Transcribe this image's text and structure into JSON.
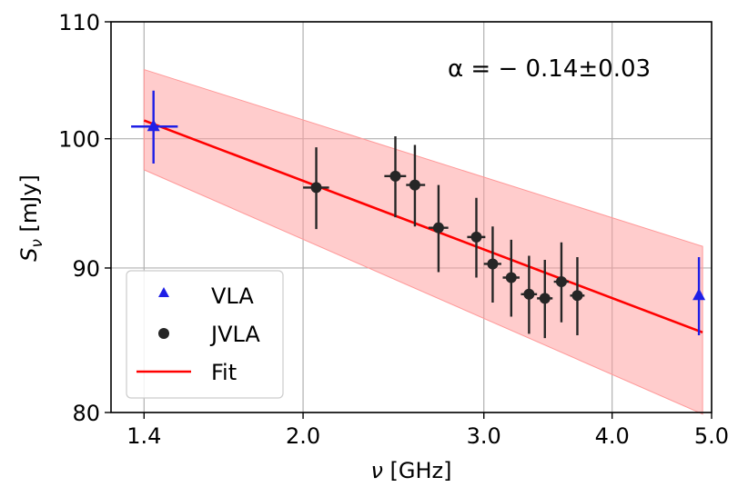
{
  "chart_data": {
    "type": "scatter",
    "xscale": "log",
    "yscale": "log",
    "xlabel_symbol": "ν",
    "xlabel_unit": "[GHz]",
    "ylabel_symbol": "S",
    "ylabel_subscript": "ν",
    "ylabel_unit": "[mJy]",
    "xlim": [
      1.3,
      5.0
    ],
    "ylim": [
      80,
      110
    ],
    "xticks": [
      {
        "value": 1.4,
        "label": "1.4"
      },
      {
        "value": 2.0,
        "label": "2.0"
      },
      {
        "value": 3.0,
        "label": "3.0"
      },
      {
        "value": 4.0,
        "label": "4.0"
      },
      {
        "value": 5.0,
        "label": "5.0"
      }
    ],
    "yticks": [
      {
        "value": 80,
        "label": "80"
      },
      {
        "value": 90,
        "label": "90"
      },
      {
        "value": 100,
        "label": "100"
      },
      {
        "value": 110,
        "label": "110"
      }
    ],
    "grid": true,
    "annotation": "α = − 0.14±0.03",
    "series": [
      {
        "name": "VLA",
        "marker": "triangle",
        "color": "#1f1fe6",
        "points": [
          {
            "x": 1.43,
            "y": 101.0,
            "yerr": 3.0,
            "xlo": 1.36,
            "xhi": 1.51
          },
          {
            "x": 4.86,
            "y": 88.0,
            "yerr": 2.8,
            "xlo": 4.86,
            "xhi": 4.86
          }
        ]
      },
      {
        "name": "JVLA",
        "marker": "circle",
        "color": "#262626",
        "points": [
          {
            "x": 2.06,
            "y": 96.1,
            "yerr": 3.2,
            "xlo": 2.0,
            "xhi": 2.12
          },
          {
            "x": 2.46,
            "y": 97.0,
            "yerr": 3.2,
            "xlo": 2.4,
            "xhi": 2.52
          },
          {
            "x": 2.57,
            "y": 96.3,
            "yerr": 3.2,
            "xlo": 2.52,
            "xhi": 2.63
          },
          {
            "x": 2.71,
            "y": 93.0,
            "yerr": 3.3,
            "xlo": 2.65,
            "xhi": 2.77
          },
          {
            "x": 2.95,
            "y": 92.3,
            "yerr": 3.0,
            "xlo": 2.89,
            "xhi": 3.01
          },
          {
            "x": 3.06,
            "y": 90.3,
            "yerr": 2.8,
            "xlo": 3.0,
            "xhi": 3.12
          },
          {
            "x": 3.19,
            "y": 89.3,
            "yerr": 2.8,
            "xlo": 3.13,
            "xhi": 3.25
          },
          {
            "x": 3.32,
            "y": 88.1,
            "yerr": 2.8,
            "xlo": 3.26,
            "xhi": 3.38
          },
          {
            "x": 3.44,
            "y": 87.8,
            "yerr": 2.8,
            "xlo": 3.38,
            "xhi": 3.5
          },
          {
            "x": 3.57,
            "y": 89.0,
            "yerr": 2.9,
            "xlo": 3.51,
            "xhi": 3.63
          },
          {
            "x": 3.7,
            "y": 88.0,
            "yerr": 2.8,
            "xlo": 3.64,
            "xhi": 3.76
          }
        ]
      }
    ],
    "fit": {
      "name": "Fit",
      "color": "#ff0000",
      "x": [
        1.4,
        4.9
      ],
      "y": [
        101.5,
        85.4
      ],
      "band_color": "#ff9999",
      "band_upper": [
        105.8,
        91.6
      ],
      "band_lower": [
        97.5,
        79.9
      ]
    },
    "legend": {
      "position": "lower-left",
      "entries": [
        {
          "label": "VLA",
          "marker": "triangle",
          "color": "#1f1fe6"
        },
        {
          "label": "JVLA",
          "marker": "circle",
          "color": "#262626"
        },
        {
          "label": "Fit",
          "marker": "line",
          "color": "#ff0000"
        }
      ]
    }
  }
}
